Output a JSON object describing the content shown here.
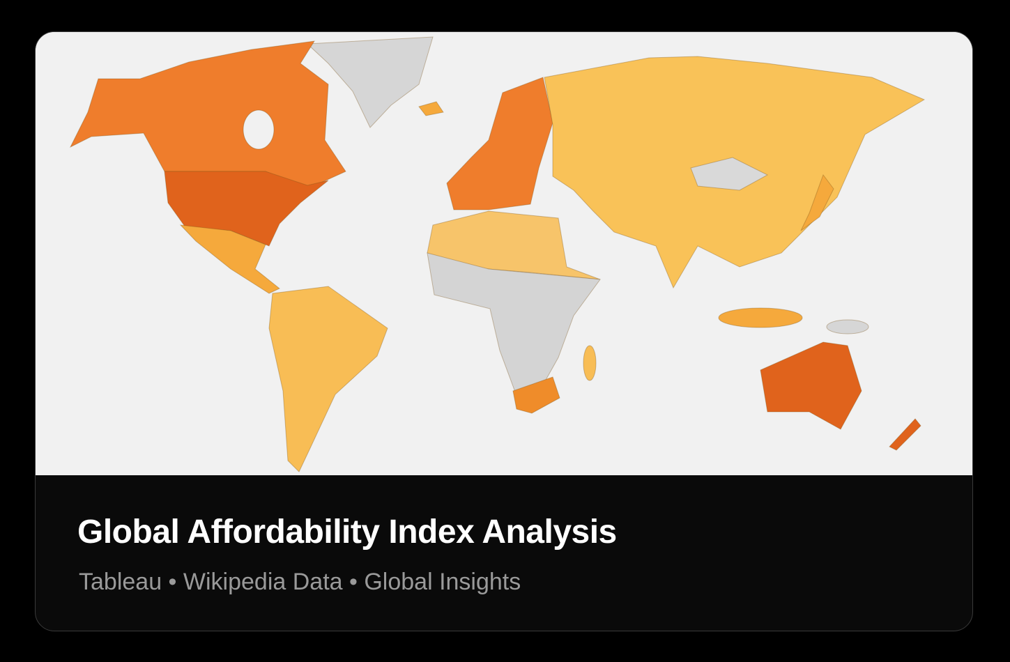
{
  "card": {
    "title": "Global Affordability Index Analysis",
    "subtitle": "Tableau • Wikipedia Data • Global Insights"
  }
}
